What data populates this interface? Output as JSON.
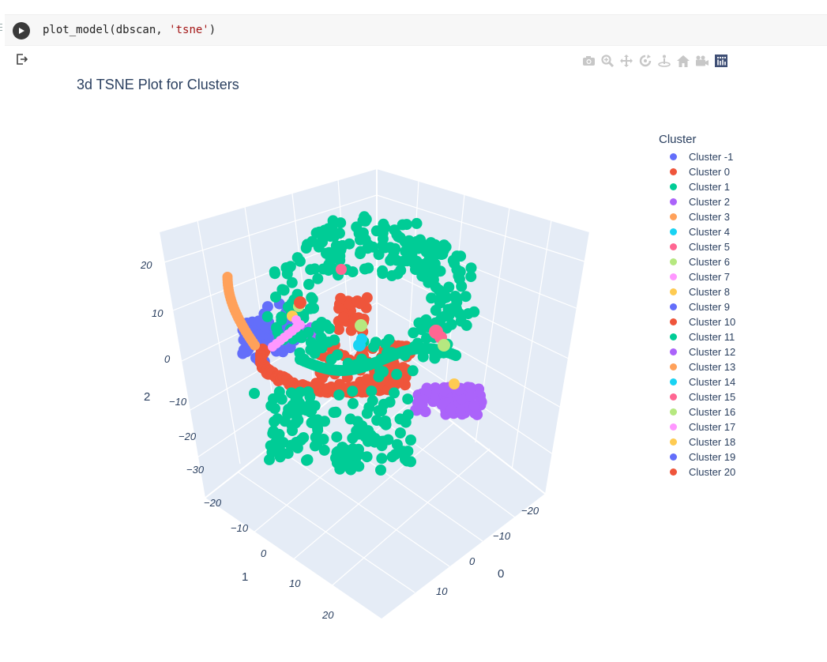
{
  "code_cell": {
    "code_prefix": "plot_model(dbscan, ",
    "code_string": "'tsne'",
    "code_suffix": ")"
  },
  "modebar": {
    "buttons": [
      {
        "name": "camera-icon",
        "color": "#c7c7c7"
      },
      {
        "name": "zoom-icon",
        "color": "#c7c7c7"
      },
      {
        "name": "pan-icon",
        "color": "#c7c7c7"
      },
      {
        "name": "orbit-rotation-icon",
        "color": "#c7c7c7"
      },
      {
        "name": "turntable-rotation-icon",
        "color": "#c7c7c7"
      },
      {
        "name": "home-icon",
        "color": "#c7c7c7"
      },
      {
        "name": "camera-view-icon",
        "color": "#c7c7c7"
      },
      {
        "name": "plotly-logo-icon",
        "color": "#3f4f75"
      }
    ]
  },
  "plot": {
    "title": "3d TSNE Plot for Clusters",
    "legend": {
      "title": "Cluster",
      "items": [
        {
          "label": "Cluster -1",
          "color": "#636efa"
        },
        {
          "label": "Cluster 0",
          "color": "#ef553b"
        },
        {
          "label": "Cluster 1",
          "color": "#00cc96"
        },
        {
          "label": "Cluster 2",
          "color": "#ab63fa"
        },
        {
          "label": "Cluster 3",
          "color": "#ffa15a"
        },
        {
          "label": "Cluster 4",
          "color": "#19d3f3"
        },
        {
          "label": "Cluster 5",
          "color": "#ff6692"
        },
        {
          "label": "Cluster 6",
          "color": "#b6e880"
        },
        {
          "label": "Cluster 7",
          "color": "#ff97ff"
        },
        {
          "label": "Cluster 8",
          "color": "#fecb52"
        },
        {
          "label": "Cluster 9",
          "color": "#636efa"
        },
        {
          "label": "Cluster 10",
          "color": "#ef553b"
        },
        {
          "label": "Cluster 11",
          "color": "#00cc96"
        },
        {
          "label": "Cluster 12",
          "color": "#ab63fa"
        },
        {
          "label": "Cluster 13",
          "color": "#ffa15a"
        },
        {
          "label": "Cluster 14",
          "color": "#19d3f3"
        },
        {
          "label": "Cluster 15",
          "color": "#ff6692"
        },
        {
          "label": "Cluster 16",
          "color": "#b6e880"
        },
        {
          "label": "Cluster 17",
          "color": "#ff97ff"
        },
        {
          "label": "Cluster 18",
          "color": "#fecb52"
        },
        {
          "label": "Cluster 19",
          "color": "#636efa"
        },
        {
          "label": "Cluster 20",
          "color": "#ef553b"
        }
      ]
    },
    "axes": {
      "z_axis_title": "2",
      "z_ticks": [
        "20",
        "10",
        "0",
        "−10",
        "−20",
        "−30"
      ],
      "x_axis_title": "1",
      "x_ticks": [
        "−20",
        "−10",
        "0",
        "10",
        "20"
      ],
      "y_axis_title": "0",
      "y_ticks": [
        "−20",
        "−10",
        "0",
        "10"
      ]
    }
  }
}
